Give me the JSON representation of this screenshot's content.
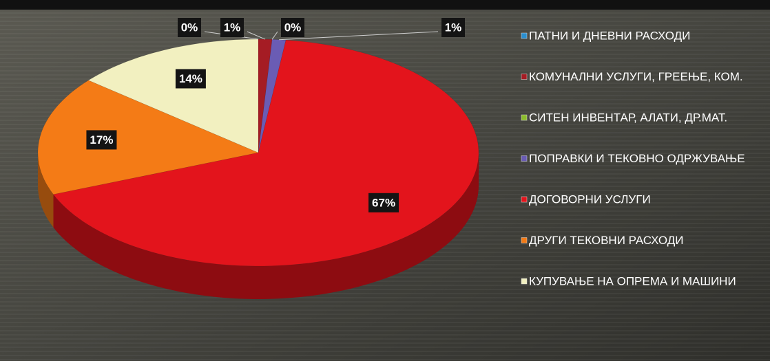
{
  "chart_data": {
    "type": "pie3d",
    "categories": [
      "ПАТНИ И ДНЕВНИ РАСХОДИ",
      "КОМУНАЛНИ УСЛУГИ, ГРЕЕЊЕ, КОМ.",
      "СИТЕН ИНВЕНТАР, АЛАТИ,  ДР.МАТ.",
      "ПОПРАВКИ И ТЕКОВНО ОДРЖУВАЊЕ",
      "ДОГОВОРНИ УСЛУГИ",
      "ДРУГИ ТЕКОВНИ РАСХОДИ",
      "КУПУВАЊЕ НА ОПРЕМА И МАШИНИ"
    ],
    "values": [
      0,
      1,
      0,
      1,
      67,
      17,
      14
    ],
    "value_labels": [
      "0%",
      "1%",
      "0%",
      "1%",
      "67%",
      "17%",
      "14%"
    ],
    "colors": [
      "#2a8fd0",
      "#a51c24",
      "#8cbd2c",
      "#6a5cb4",
      "#e3141c",
      "#f47b16",
      "#f2f0c0"
    ],
    "legend": "right"
  }
}
